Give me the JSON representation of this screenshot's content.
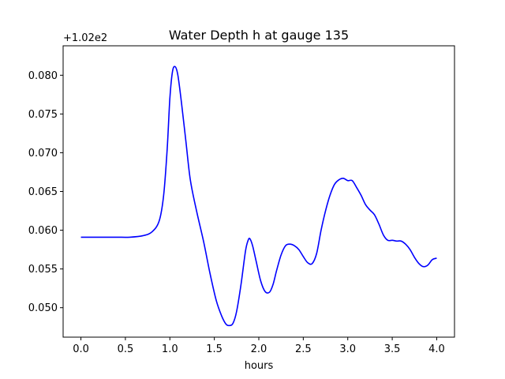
{
  "chart_data": {
    "type": "line",
    "title": "Water Depth h at gauge 135",
    "xlabel": "hours",
    "ylabel": "",
    "y_offset_label": "+1.02e2",
    "xlim": [
      -0.2,
      4.2
    ],
    "ylim": [
      0.0462,
      0.0838
    ],
    "xticks": [
      0.0,
      0.5,
      1.0,
      1.5,
      2.0,
      2.5,
      3.0,
      3.5,
      4.0
    ],
    "xtick_labels": [
      "0.0",
      "0.5",
      "1.0",
      "1.5",
      "2.0",
      "2.5",
      "3.0",
      "3.5",
      "4.0"
    ],
    "yticks": [
      0.05,
      0.055,
      0.06,
      0.065,
      0.07,
      0.075,
      0.08
    ],
    "ytick_labels": [
      "0.050",
      "0.055",
      "0.060",
      "0.065",
      "0.070",
      "0.075",
      "0.080"
    ],
    "grid": false,
    "series": [
      {
        "color": "#0000ff",
        "x": [
          0.0,
          0.2,
          0.4,
          0.55,
          0.7,
          0.8,
          0.88,
          0.93,
          0.97,
          1.0,
          1.03,
          1.06,
          1.09,
          1.13,
          1.18,
          1.23,
          1.3,
          1.38,
          1.45,
          1.52,
          1.58,
          1.63,
          1.67,
          1.71,
          1.75,
          1.8,
          1.85,
          1.88,
          1.9,
          1.93,
          1.97,
          2.02,
          2.07,
          2.12,
          2.16,
          2.2,
          2.25,
          2.3,
          2.35,
          2.4,
          2.45,
          2.5,
          2.55,
          2.6,
          2.65,
          2.7,
          2.75,
          2.8,
          2.85,
          2.9,
          2.95,
          3.0,
          3.05,
          3.1,
          3.15,
          3.2,
          3.25,
          3.3,
          3.35,
          3.4,
          3.45,
          3.5,
          3.55,
          3.6,
          3.65,
          3.7,
          3.75,
          3.8,
          3.85,
          3.9,
          3.95,
          4.0
        ],
        "y": [
          0.0591,
          0.0591,
          0.0591,
          0.0591,
          0.0593,
          0.0598,
          0.0612,
          0.0645,
          0.0705,
          0.077,
          0.0805,
          0.0811,
          0.08,
          0.0765,
          0.0715,
          0.0665,
          0.0625,
          0.0585,
          0.0545,
          0.051,
          0.049,
          0.0479,
          0.0477,
          0.048,
          0.0495,
          0.053,
          0.0573,
          0.0587,
          0.0589,
          0.058,
          0.056,
          0.0535,
          0.0521,
          0.052,
          0.053,
          0.0548,
          0.0568,
          0.058,
          0.0582,
          0.058,
          0.0575,
          0.0566,
          0.0558,
          0.0557,
          0.057,
          0.06,
          0.0625,
          0.0645,
          0.0659,
          0.0665,
          0.0667,
          0.0664,
          0.0664,
          0.0655,
          0.0645,
          0.0633,
          0.0626,
          0.062,
          0.0608,
          0.0594,
          0.0587,
          0.0587,
          0.0586,
          0.0586,
          0.0582,
          0.0575,
          0.0565,
          0.0557,
          0.0553,
          0.0555,
          0.0562,
          0.0564
        ]
      }
    ]
  }
}
